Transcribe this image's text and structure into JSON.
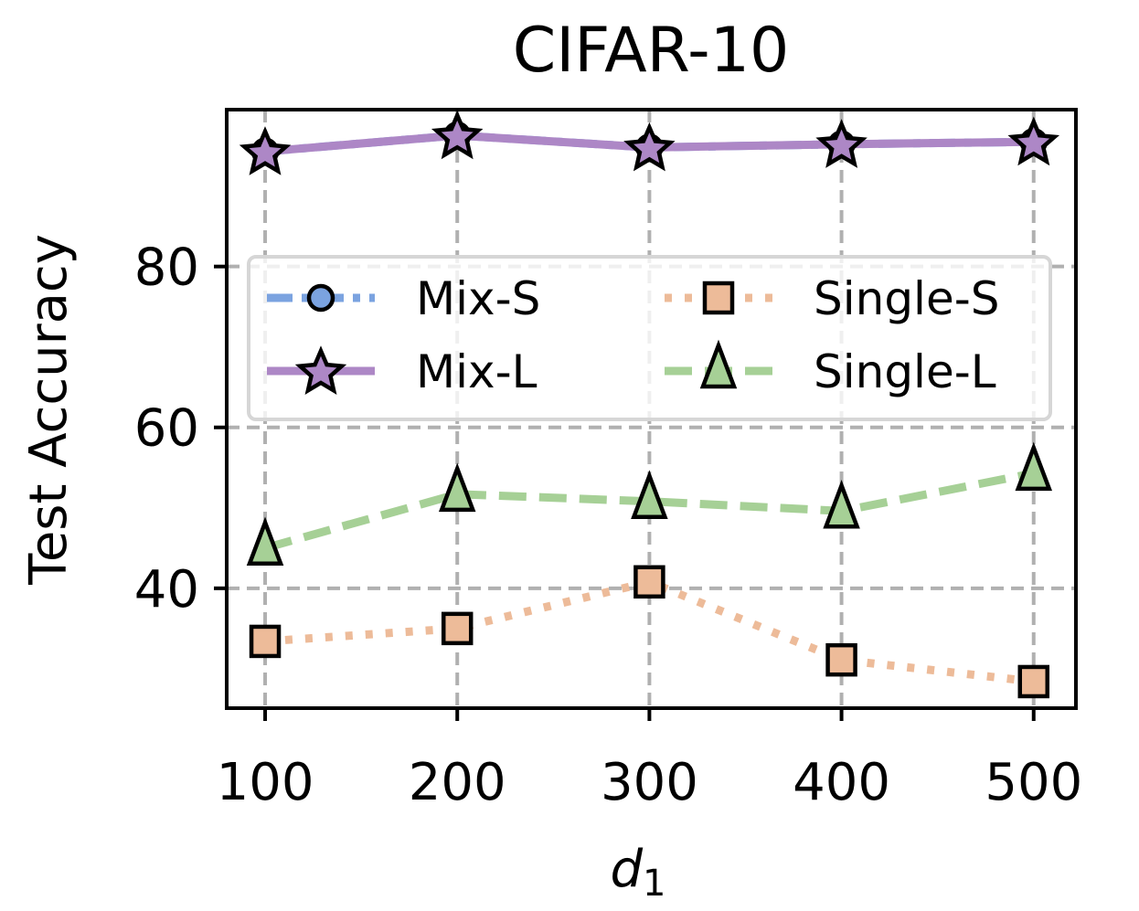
{
  "chart_data": {
    "type": "line",
    "title": "CIFAR-10",
    "xlabel": "d",
    "xlabel_subscript": "1",
    "ylabel": "Test Accuracy",
    "x": [
      100,
      200,
      300,
      400,
      500
    ],
    "xticks": [
      100,
      200,
      300,
      400,
      500
    ],
    "xtick_labels": [
      "100",
      "200",
      "300",
      "400",
      "500"
    ],
    "yticks": [
      40,
      60,
      80
    ],
    "ytick_labels": [
      "40",
      "60",
      "80"
    ],
    "xlim": [
      80,
      522
    ],
    "ylim": [
      25.1,
      99.5
    ],
    "grid": true,
    "legend": {
      "location": "center",
      "columns": 2
    },
    "series": [
      {
        "name": "Mix-S",
        "color": "#7ba3e0",
        "linestyle": "dashdot",
        "marker": "circle",
        "values": [
          94.3,
          96.3,
          94.8,
          95.2,
          95.5
        ]
      },
      {
        "name": "Mix-L",
        "color": "#ad87c6",
        "linestyle": "solid",
        "marker": "star",
        "values": [
          94.3,
          96.3,
          94.8,
          95.2,
          95.5
        ]
      },
      {
        "name": "Single-S",
        "color": "#edbb99",
        "linestyle": "dotted",
        "marker": "square",
        "values": [
          33.4,
          35.0,
          40.8,
          31.1,
          28.4
        ]
      },
      {
        "name": "Single-L",
        "color": "#a6d096",
        "linestyle": "dashed",
        "marker": "triangle",
        "values": [
          45.0,
          51.7,
          50.8,
          49.6,
          54.3
        ]
      }
    ]
  }
}
